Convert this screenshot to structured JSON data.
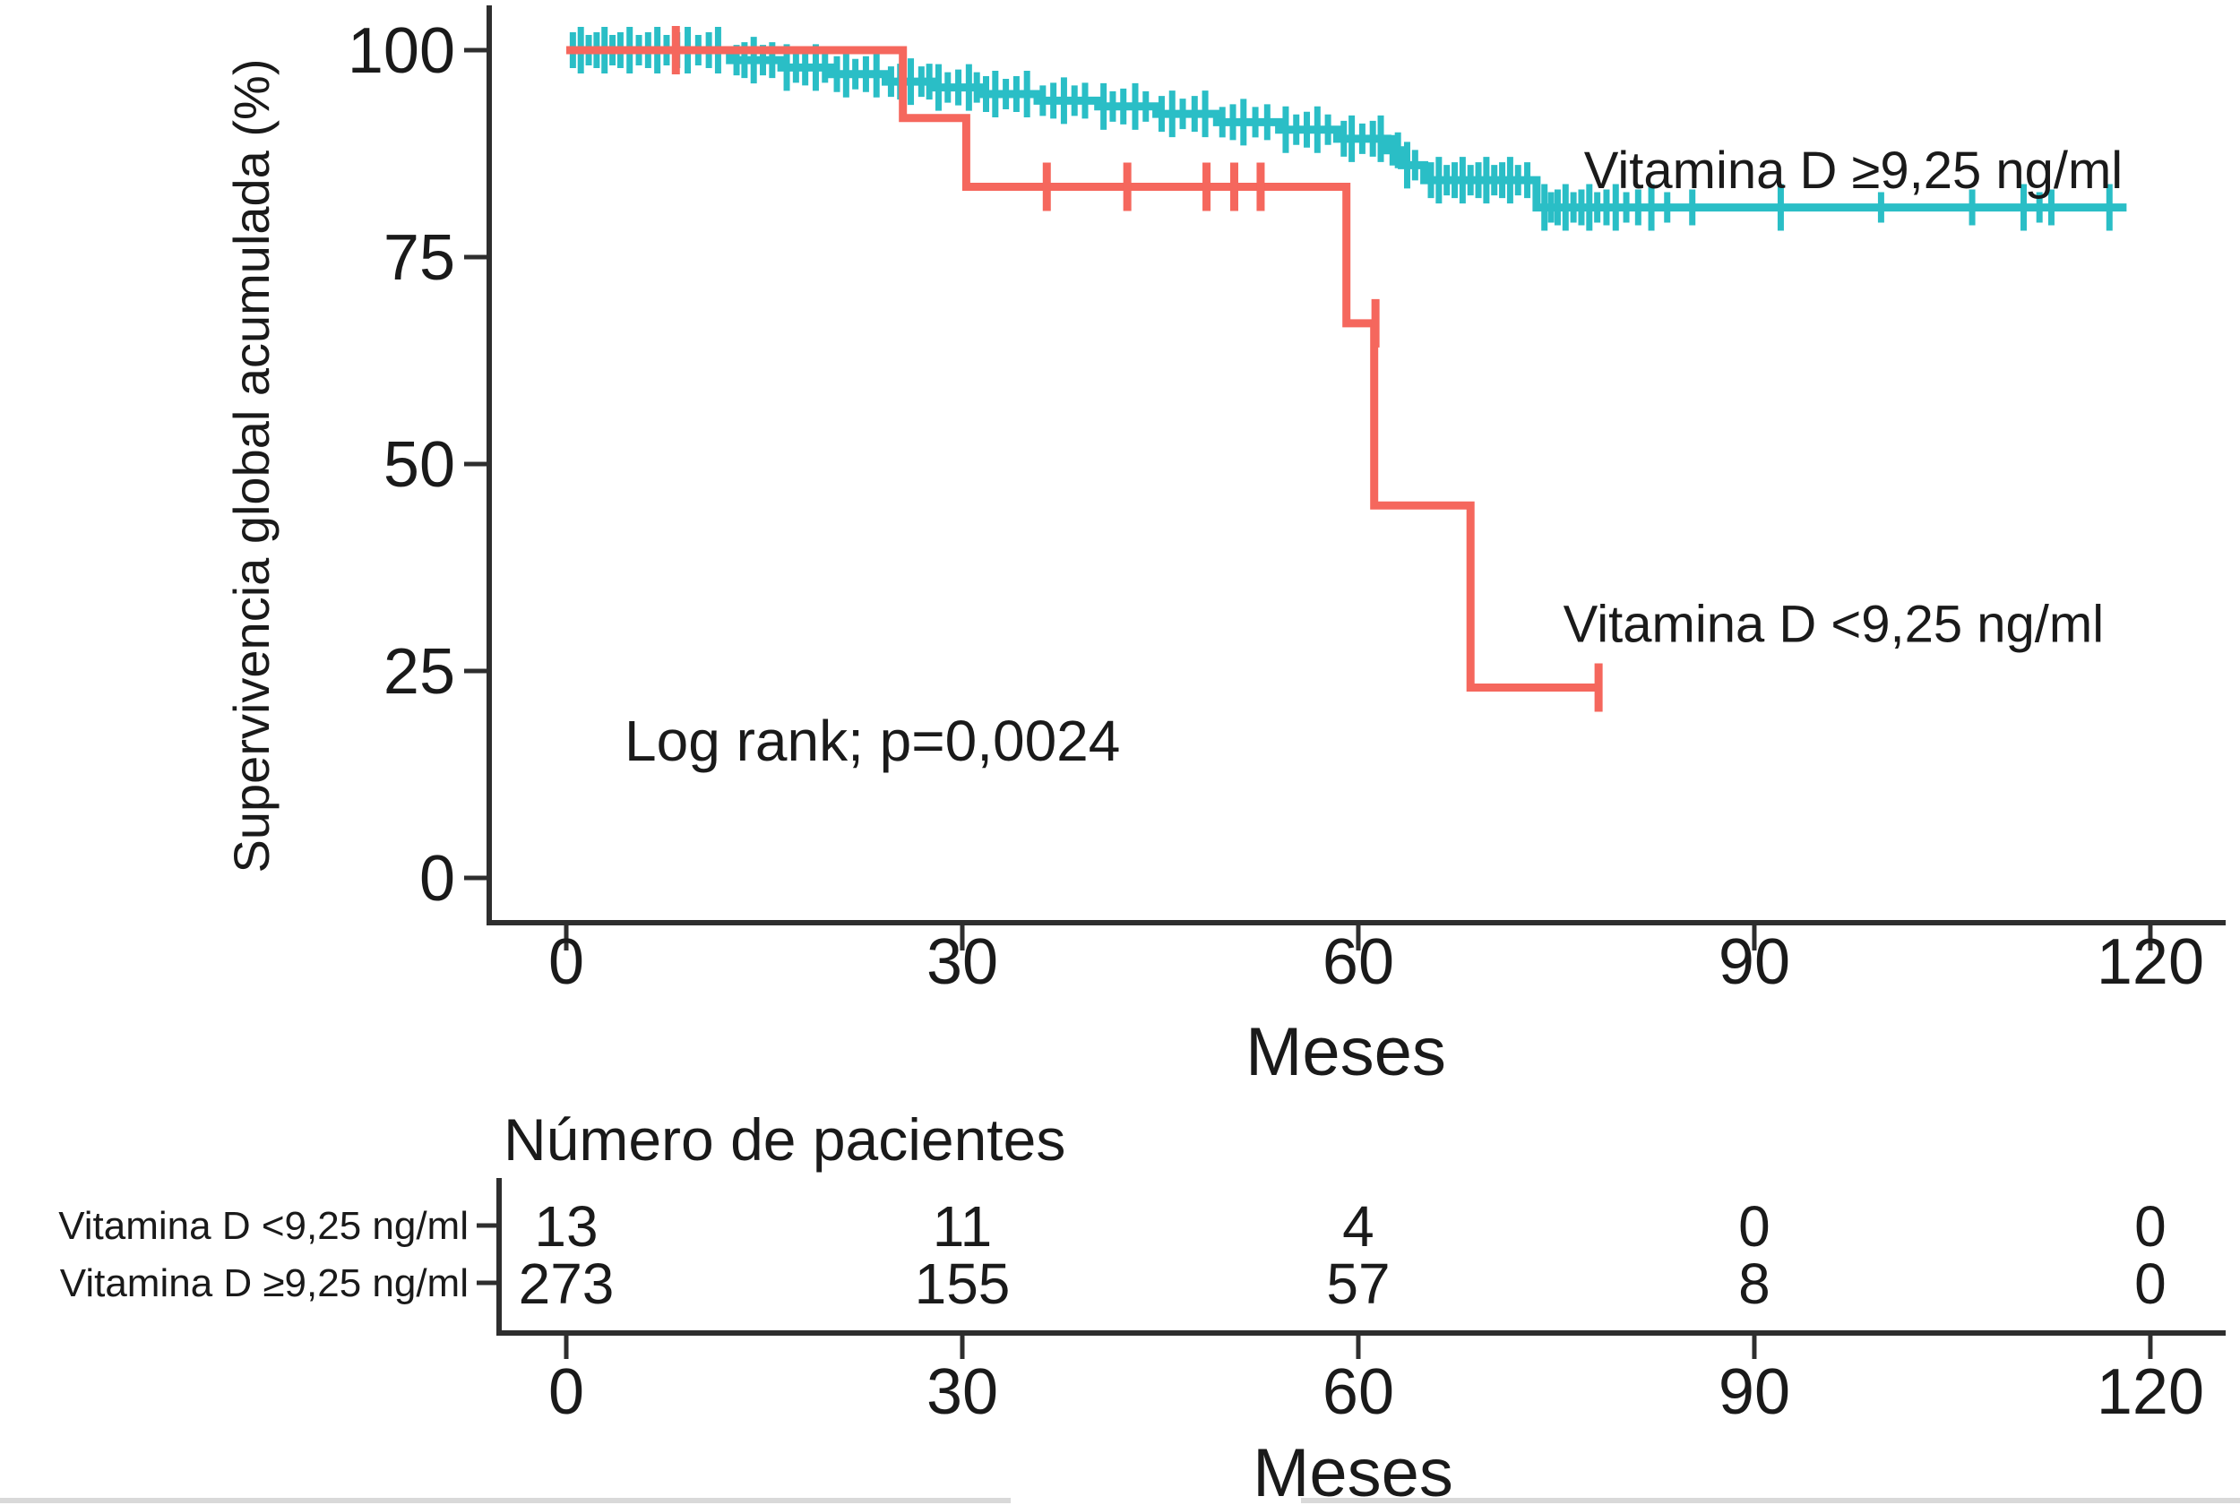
{
  "figure": {
    "background": "#ffffff",
    "axis_color": "#2e2e2e",
    "text_color": "#1a1a1a",
    "edge_artifact_color": "#d9d9d9",
    "ylabel": "Supervivencia global acumulada (%)",
    "xlabel_top": "Meses",
    "xlabel_bottom": "Meses",
    "annotation": "Log rank; p=0,0024",
    "risk_table_title": "Número de pacientes"
  },
  "chart_data": {
    "type": "line",
    "variant": "kaplan-meier-step",
    "title": "",
    "xlabel": "Meses",
    "ylabel": "Supervivencia global acumulada (%)",
    "x_ticks": [
      0,
      30,
      60,
      90,
      120
    ],
    "y_ticks": [
      100,
      75,
      50,
      25,
      0
    ],
    "xlim": [
      -6,
      125.5
    ],
    "ylim": [
      -6,
      105.5
    ],
    "grid": false,
    "legend_position": "inline-labels",
    "annotation": "Log rank; p=0,0024",
    "annotation_pos": {
      "month": 4.4,
      "pct": 16.6
    },
    "series": [
      {
        "name": "Vitamina D ≥9,25 ng/ml",
        "color": "#2abec6",
        "label_pos": {
          "month": 97.5,
          "pct": 85.5
        },
        "steps": [
          [
            0,
            100
          ],
          [
            12.4,
            100
          ],
          [
            12.4,
            98.8
          ],
          [
            16.3,
            98.8
          ],
          [
            16.3,
            97.9
          ],
          [
            20.1,
            97.9
          ],
          [
            20.1,
            97.1
          ],
          [
            24.2,
            97.1
          ],
          [
            24.2,
            96.2
          ],
          [
            27.8,
            96.2
          ],
          [
            27.8,
            95.5
          ],
          [
            31.4,
            95.5
          ],
          [
            31.4,
            94.7
          ],
          [
            35.7,
            94.7
          ],
          [
            35.7,
            93.9
          ],
          [
            40.3,
            93.9
          ],
          [
            40.3,
            93.2
          ],
          [
            44.7,
            93.2
          ],
          [
            44.7,
            92.3
          ],
          [
            49.3,
            92.3
          ],
          [
            49.3,
            91.3
          ],
          [
            54,
            91.3
          ],
          [
            54,
            90.4
          ],
          [
            58.4,
            90.4
          ],
          [
            58.4,
            89.3
          ],
          [
            62.2,
            89.3
          ],
          [
            62.2,
            87.9
          ],
          [
            63.3,
            87.9
          ],
          [
            63.3,
            86.1
          ],
          [
            65,
            86.1
          ],
          [
            65,
            84.3
          ],
          [
            73.5,
            84.3
          ],
          [
            73.5,
            81
          ],
          [
            118.2,
            81
          ]
        ],
        "censor_groups": [
          {
            "pct": 100,
            "months": [
              0.5,
              1.1,
              1.7,
              2.3,
              2.9,
              3.5,
              4.1,
              4.8,
              5.5,
              6.2,
              6.9,
              7.6,
              8.4,
              9.2,
              10.0,
              10.8,
              11.5
            ]
          },
          {
            "pct": 98.8,
            "months": [
              12.9,
              13.5,
              14.2,
              14.9,
              15.6
            ]
          },
          {
            "pct": 97.9,
            "months": [
              16.7,
              17.4,
              18.1,
              18.9,
              19.6
            ]
          },
          {
            "pct": 97.1,
            "months": [
              20.5,
              21.2,
              21.9,
              22.7,
              23.5
            ]
          },
          {
            "pct": 96.2,
            "months": [
              24.6,
              25.3,
              26.1,
              26.9,
              27.5
            ]
          },
          {
            "pct": 95.5,
            "months": [
              28.2,
              28.9,
              29.7,
              30.5,
              31.1
            ]
          },
          {
            "pct": 94.7,
            "months": [
              31.8,
              32.5,
              33.3,
              34.1,
              34.9
            ]
          },
          {
            "pct": 93.9,
            "months": [
              36.1,
              36.9,
              37.7,
              38.5,
              39.3
            ]
          },
          {
            "pct": 93.2,
            "months": [
              40.7,
              41.4,
              42.2,
              43.1,
              43.9
            ]
          },
          {
            "pct": 92.3,
            "months": [
              45.1,
              45.9,
              46.7,
              47.6,
              48.4
            ]
          },
          {
            "pct": 91.3,
            "months": [
              49.7,
              50.5,
              51.3,
              52.2,
              53.1
            ]
          },
          {
            "pct": 90.4,
            "months": [
              54.5,
              55.3,
              56.1,
              56.9,
              57.7
            ]
          },
          {
            "pct": 89.3,
            "months": [
              58.9,
              59.5,
              60.3,
              61.1,
              61.7
            ]
          },
          {
            "pct": 87.9,
            "months": [
              62.6,
              63.0
            ]
          },
          {
            "pct": 86.1,
            "months": [
              63.7,
              64.3
            ]
          },
          {
            "pct": 84.3,
            "months": [
              65.5,
              66.1,
              66.7,
              67.3,
              67.9,
              68.5,
              69.1,
              69.7,
              70.3,
              70.9,
              71.5,
              72.1,
              72.8
            ]
          },
          {
            "pct": 81,
            "months": [
              74.1,
              74.6,
              75.1,
              75.7,
              76.3,
              76.9,
              77.5,
              78.1,
              78.8,
              79.5,
              80.3,
              81.2,
              82.2,
              83.4,
              85.3,
              92.0,
              99.6,
              106.5,
              110.4,
              111.6,
              112.5,
              116.9
            ]
          }
        ]
      },
      {
        "name": "Vitamina D <9,25 ng/ml",
        "color": "#f5675d",
        "label_pos": {
          "month": 96,
          "pct": 30.7
        },
        "steps": [
          [
            0,
            100
          ],
          [
            25.5,
            100
          ],
          [
            25.5,
            91.8
          ],
          [
            30.3,
            91.8
          ],
          [
            30.3,
            83.5
          ],
          [
            59.1,
            83.5
          ],
          [
            59.1,
            67
          ],
          [
            61.2,
            67
          ],
          [
            61.2,
            45
          ],
          [
            68.5,
            45
          ],
          [
            68.5,
            23
          ],
          [
            78.3,
            23
          ]
        ],
        "censor_groups": [
          {
            "pct": 100,
            "months": [
              8.3
            ]
          },
          {
            "pct": 83.5,
            "months": [
              36.4,
              42.5,
              48.5,
              50.6,
              52.6
            ]
          },
          {
            "pct": 67,
            "months": [
              61.3
            ]
          },
          {
            "pct": 23,
            "months": [
              78.2
            ]
          }
        ]
      }
    ],
    "risk_table": {
      "title": "Número de pacientes",
      "time_points": [
        0,
        30,
        60,
        90,
        120
      ],
      "rows": [
        {
          "label": "Vitamina D <9,25 ng/ml",
          "color": "#f4766d",
          "values": [
            13,
            11,
            4,
            0,
            0
          ]
        },
        {
          "label": "Vitamina D ≥9,25 ng/ml",
          "color": "#2cc4cb",
          "values": [
            273,
            155,
            57,
            8,
            0
          ]
        }
      ]
    }
  }
}
